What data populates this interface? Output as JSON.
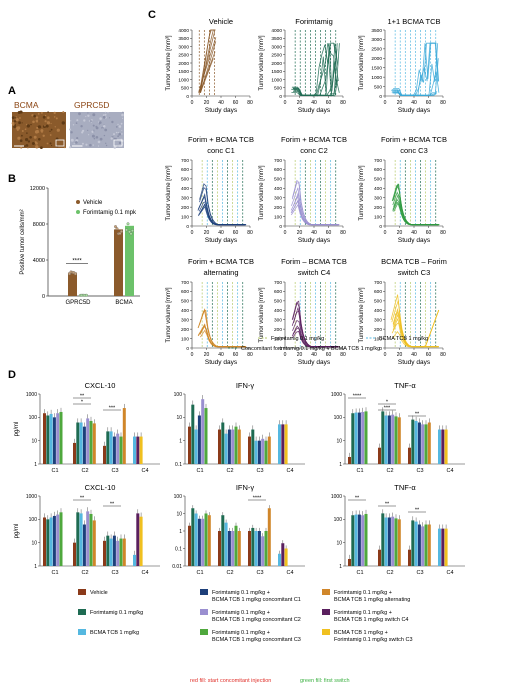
{
  "panel_labels": {
    "a": "A",
    "b": "B",
    "c": "C",
    "d": "D"
  },
  "panel_a": {
    "labels": [
      "BCMA",
      "GPRC5D"
    ],
    "colors": {
      "bcma_stain": "#8a5a2b",
      "gprc5d_stain": "#a8adc0",
      "label": "#8b4513"
    }
  },
  "chart_data": [
    {
      "id": "B",
      "type": "bar",
      "ylabel": "Positive tumor cells/mm²",
      "ylim": [
        0,
        12000
      ],
      "yticks": [
        "0",
        "4000",
        "8000",
        "12000"
      ],
      "categories": [
        "GPRC5D",
        "BCMA"
      ],
      "series": [
        {
          "name": "Vehicle",
          "color": "#8b5a2b",
          "values": [
            2600,
            7400
          ]
        },
        {
          "name": "Forimtamig 0.1 mpk",
          "color": "#6cc26a",
          "values": [
            80,
            7800
          ]
        }
      ],
      "annotations": [
        "****"
      ],
      "legend": "top-right"
    },
    {
      "id": "C",
      "type": "line",
      "xlabel": "Study days",
      "ylabel": "Tumor volume [mm³]",
      "xticks": [
        "0",
        "20",
        "40",
        "60",
        "80"
      ],
      "panels": [
        {
          "title": [
            "Vehicle"
          ],
          "color": "#8b5a2b",
          "yticks": [
            "0",
            "500",
            "1000",
            "1500",
            "2000",
            "2500",
            "3000",
            "3500",
            "4000"
          ],
          "ymax": 4000
        },
        {
          "title": [
            "Forimtamig"
          ],
          "color": "#1e6b52",
          "yticks": [
            "0",
            "500",
            "1000",
            "1500",
            "2000",
            "2500",
            "3000",
            "3500",
            "4000"
          ],
          "ymax": 4000
        },
        {
          "title": [
            "1+1 BCMA TCB"
          ],
          "color": "#39a8d8",
          "yticks": [
            "0",
            "500",
            "1000",
            "1500",
            "2000",
            "2500",
            "3000",
            "3500"
          ],
          "ymax": 3500
        },
        {
          "title": [
            "Forim + BCMA TCB",
            "conc C1"
          ],
          "color": "#1d3f7a",
          "yticks": [
            "0",
            "100",
            "200",
            "300",
            "400",
            "500",
            "600",
            "700"
          ],
          "ymax": 700
        },
        {
          "title": [
            "Forim + BCMA TCB",
            "conc C2"
          ],
          "color": "#9a8fd0",
          "yticks": [
            "0",
            "100",
            "200",
            "300",
            "400",
            "500",
            "600",
            "700"
          ],
          "ymax": 700
        },
        {
          "title": [
            "Forim + BCMA TCB",
            "conc C3"
          ],
          "color": "#2e9a3f",
          "yticks": [
            "0",
            "100",
            "200",
            "300",
            "400",
            "500",
            "600",
            "700"
          ],
          "ymax": 700
        },
        {
          "title": [
            "Forim + BCMA TCB",
            "alternating"
          ],
          "color": "#d08a2a",
          "yticks": [
            "0",
            "100",
            "200",
            "300",
            "400",
            "500",
            "600",
            "700"
          ],
          "ymax": 700
        },
        {
          "title": [
            "Forim – BCMA TCB",
            "switch C4"
          ],
          "color": "#5a1f5e",
          "yticks": [
            "0",
            "100",
            "200",
            "300",
            "400",
            "500",
            "600",
            "700"
          ],
          "ymax": 700
        },
        {
          "title": [
            "BCMA TCB – Forim",
            "switch C3"
          ],
          "color": "#f0c020",
          "yticks": [
            "0",
            "100",
            "200",
            "300",
            "400",
            "500",
            "600",
            "700"
          ],
          "ymax": 700
        }
      ],
      "dosing_legend": [
        {
          "label": "Forimtamig 0.1 mg/kg",
          "color": "#b5c96a"
        },
        {
          "label": "BCMA TCB 1 mg/kg",
          "color": "#55b8e0"
        },
        {
          "label": "Concomitant forimtamig 0.1 mg/kg + BCMA TCB 1 mg/kg",
          "color": "#1e6b52"
        }
      ]
    },
    {
      "id": "D",
      "type": "bar",
      "ylabel": "pg/ml",
      "categories": [
        "C1",
        "C2",
        "C3",
        "C4"
      ],
      "yscale": "log",
      "rows": [
        {
          "panels": [
            {
              "title": "CXCL-10",
              "yticks": [
                "1",
                "10",
                "100",
                "1000"
              ],
              "ylim": [
                1,
                1000
              ],
              "values": [
                [
                  150,
                  120,
                  140,
                  100,
                  150,
                  170,
                  0,
                  0,
                  0
                ],
                [
                  8,
                  60,
                  60,
                  40,
                  90,
                  70,
                  55,
                  0,
                  0
                ],
                [
                  6,
                  25,
                  25,
                  15,
                  20,
                  15,
                  250,
                  0,
                  0
                ],
                [
                  0,
                  0,
                  15,
                  0,
                  0,
                  0,
                  0,
                  15,
                  15
                ]
              ],
              "sig": [
                {
                  "text": "**",
                  "c": 1
                },
                {
                  "text": "*",
                  "c": 1
                },
                {
                  "text": "***",
                  "c": 2
                }
              ]
            },
            {
              "title": "IFN-γ",
              "yticks": [
                "0.1",
                "1",
                "10",
                "100"
              ],
              "ylim": [
                0.1,
                100
              ],
              "values": [
                [
                  4,
                  35,
                  3,
                  12,
                  60,
                  25,
                  0,
                  0,
                  0
                ],
                [
                  3,
                  6,
                  2,
                  3,
                  3,
                  4,
                  3,
                  0,
                  0
                ],
                [
                  1.5,
                  3,
                  1,
                  1,
                  1.2,
                  1,
                  1.5,
                  0,
                  0
                ],
                [
                  0,
                  0,
                  5,
                  0,
                  0,
                  0,
                  0,
                  5,
                  5
                ]
              ],
              "sig": []
            },
            {
              "title": "TNF-α",
              "yticks": [
                "1",
                "10",
                "100",
                "1000"
              ],
              "ylim": [
                1,
                1000
              ],
              "values": [
                [
                  2,
                  150,
                  160,
                  160,
                  170,
                  180,
                  0,
                  0,
                  0
                ],
                [
                  5,
                  180,
                  120,
                  120,
                  130,
                  110,
                  100,
                  0,
                  0
                ],
                [
                  5,
                  80,
                  70,
                  60,
                  50,
                  50,
                  60,
                  0,
                  0
                ],
                [
                  0,
                  0,
                  30,
                  0,
                  0,
                  0,
                  0,
                  30,
                  30
                ]
              ],
              "sig": [
                {
                  "text": "****",
                  "c": 0
                },
                {
                  "text": "*",
                  "c": 1
                },
                {
                  "text": "***",
                  "c": 1
                },
                {
                  "text": "**",
                  "c": 2
                }
              ]
            }
          ]
        },
        {
          "panels": [
            {
              "title": "CXCL-10",
              "yticks": [
                "1",
                "10",
                "100",
                "1000"
              ],
              "ylim": [
                1,
                1000
              ],
              "values": [
                [
                  120,
                  100,
                  120,
                  140,
                  160,
                  200,
                  0,
                  0,
                  0
                ],
                [
                  10,
                  200,
                  180,
                  60,
                  220,
                  170,
                  90,
                  0,
                  0
                ],
                [
                  12,
                  20,
                  15,
                  20,
                  12,
                  15,
                  15,
                  0,
                  0
                ],
                [
                  0,
                  0,
                  3,
                  0,
                  0,
                  0,
                  0,
                  180,
                  130
                ]
              ],
              "sig": [
                {
                  "text": "**",
                  "c": 1
                },
                {
                  "text": "**",
                  "c": 2
                }
              ]
            },
            {
              "title": "IFN-γ",
              "yticks": [
                "0.01",
                "0.1",
                "1",
                "10",
                "100"
              ],
              "ylim": [
                0.01,
                100
              ],
              "values": [
                [
                  2,
                  20,
                  10,
                  5,
                  5,
                  10,
                  8,
                  0,
                  0
                ],
                [
                  1,
                  8,
                  3,
                  1,
                  1,
                  2,
                  1,
                  0,
                  0
                ],
                [
                  1,
                  1.5,
                  1,
                  1,
                  0.5,
                  1,
                  20,
                  0,
                  0
                ],
                [
                  0,
                  0,
                  0.05,
                  0,
                  0,
                  0,
                  0,
                  0.2,
                  0.1
                ]
              ],
              "sig": [
                {
                  "text": "****",
                  "c": 2
                }
              ]
            },
            {
              "title": "TNF-α",
              "yticks": [
                "1",
                "10",
                "100",
                "1000"
              ],
              "ylim": [
                1,
                1000
              ],
              "values": [
                [
                  2,
                  150,
                  160,
                  160,
                  150,
                  170,
                  0,
                  0,
                  0
                ],
                [
                  5,
                  180,
                  120,
                  120,
                  130,
                  110,
                  100,
                  0,
                  0
                ],
                [
                  5,
                  90,
                  80,
                  60,
                  50,
                  60,
                  60,
                  0,
                  0
                ],
                [
                  0,
                  0,
                  40,
                  0,
                  0,
                  0,
                  0,
                  40,
                  40
                ]
              ],
              "sig": [
                {
                  "text": "**",
                  "c": 0
                },
                {
                  "text": "**",
                  "c": 1
                },
                {
                  "text": "**",
                  "c": 2
                }
              ]
            }
          ]
        }
      ],
      "legend": [
        {
          "label": [
            "Vehicle"
          ],
          "color": "#8b3a1a"
        },
        {
          "label": [
            "Forimtamig 0.1 mg/kg +",
            "BCMA TCB 1 mg/kg concomitant C1"
          ],
          "color": "#1d3f7a"
        },
        {
          "label": [
            "Forimtamig 0.1 mg/kg +",
            "BCMA TCB 1 mg/kg alternating"
          ],
          "color": "#d0862a"
        },
        {
          "label": [
            "Forimtamig 0.1 mg/kg"
          ],
          "color": "#1e6b52"
        },
        {
          "label": [
            "Forimtamig 0.1 mg/kg +",
            "BCMA TCB 1 mg/kg concomitant C2"
          ],
          "color": "#9a8fd0"
        },
        {
          "label": [
            "Forimtamig 0.1 mg/kg +",
            "BCMA TCB 1 mg/kg switch C4"
          ],
          "color": "#5a1f5e"
        },
        {
          "label": [
            "BCMA TCB 1 mg/kg"
          ],
          "color": "#55b8e0"
        },
        {
          "label": [
            "Forimtamig 0.1 mg/kg +",
            "BCMA TCB 1 mg/kg concomitant C3"
          ],
          "color": "#4fa83d"
        },
        {
          "label": [
            "BCMA TCB 1 mg/kg +",
            "Forimtamig 0.1 mg/kg switch C3"
          ],
          "color": "#f0c020"
        }
      ],
      "footnotes": [
        {
          "text": "red fill: start concomitant injection",
          "color": "#e0302a"
        },
        {
          "text": "green fill: first switch",
          "color": "#3ab040"
        }
      ]
    }
  ]
}
